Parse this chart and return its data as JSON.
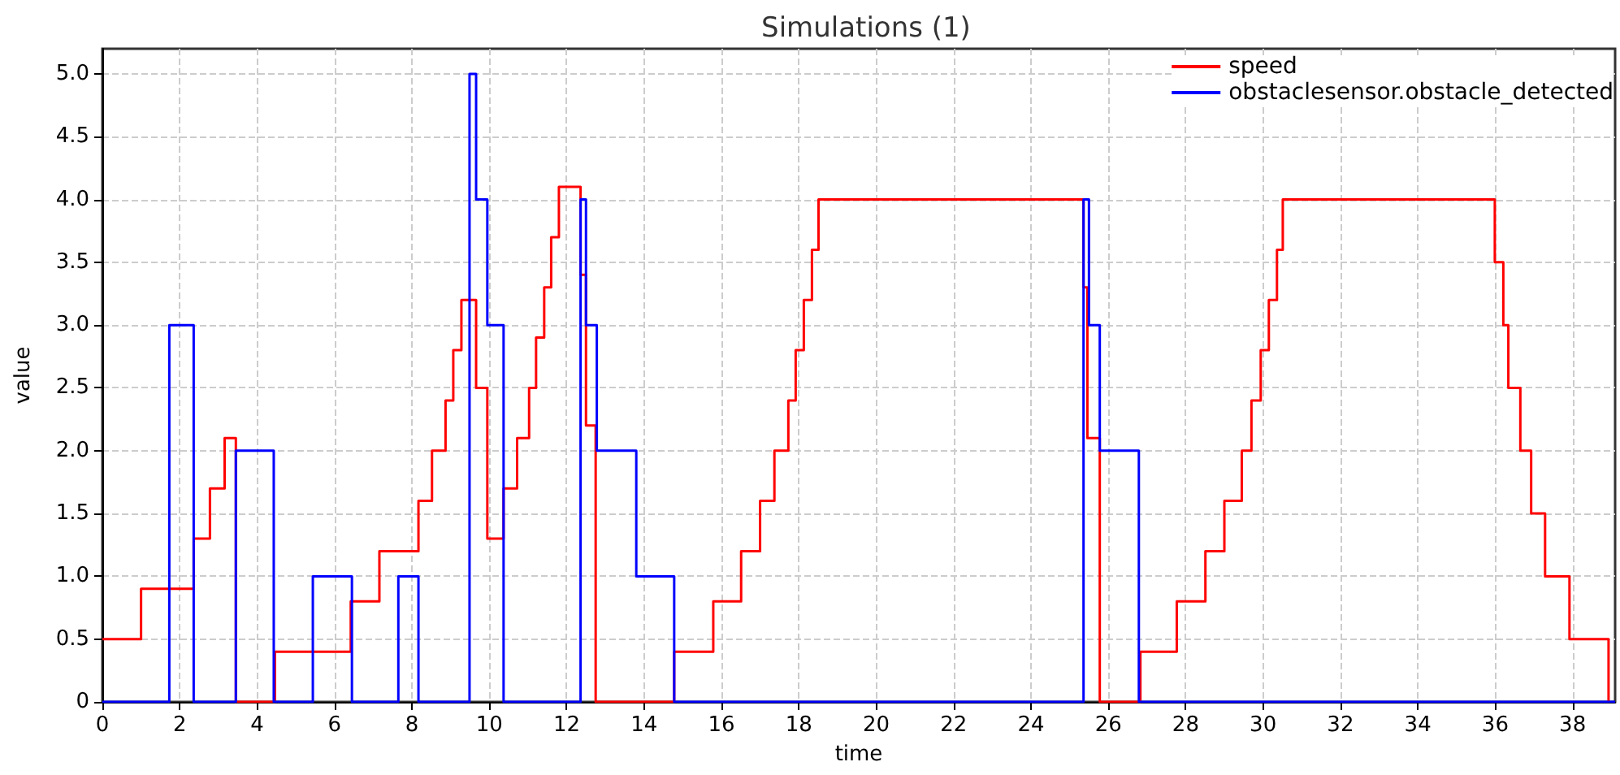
{
  "chart_data": {
    "type": "step",
    "title": "Simulations (1)",
    "xlabel": "time",
    "ylabel": "value",
    "xlim": [
      0,
      39.1
    ],
    "xticks": [
      0,
      2,
      4,
      6,
      8,
      10,
      12,
      14,
      16,
      18,
      20,
      22,
      24,
      26,
      28,
      30,
      32,
      34,
      36,
      38
    ],
    "ylim": [
      0,
      5.2
    ],
    "yticks": [
      0,
      0.5,
      {
        "value": 1,
        "label": "1.0"
      },
      1.5,
      {
        "value": 2,
        "label": "2.0"
      },
      2.5,
      {
        "value": 3,
        "label": "3.0"
      },
      3.5,
      {
        "value": 4,
        "label": "4.0"
      },
      4.5,
      {
        "value": 5,
        "label": "5.0"
      }
    ],
    "grid": true,
    "legend": "top right",
    "line_style": "solid",
    "marker": "none",
    "series": [
      {
        "name": "speed",
        "color": "#ff0000",
        "x": [
          0,
          1.0,
          2.36,
          2.78,
          3.16,
          3.45,
          4.46,
          6.42,
          7.16,
          8.17,
          8.52,
          8.87,
          9.07,
          9.28,
          9.66,
          9.95,
          10.37,
          10.72,
          11.03,
          11.21,
          11.42,
          11.6,
          11.8,
          12.36,
          12.5,
          12.75,
          14.78,
          15.79,
          16.51,
          17.0,
          17.37,
          17.73,
          17.92,
          18.13,
          18.34,
          18.51,
          25.36,
          25.46,
          25.78,
          26.83,
          27.77,
          28.51,
          29.0,
          29.45,
          29.7,
          29.94,
          30.15,
          30.36,
          30.51,
          35.99,
          36.21,
          36.34,
          36.65,
          36.93,
          37.29,
          37.92,
          38.93
        ],
        "values": [
          0.5,
          0.9,
          1.3,
          1.7,
          2.1,
          0,
          0.4,
          0.8,
          1.2,
          1.6,
          2.0,
          2.4,
          2.8,
          3.2,
          2.5,
          1.3,
          1.7,
          2.1,
          2.5,
          2.9,
          3.3,
          3.7,
          4.1,
          3.4,
          2.2,
          0,
          0.4,
          0.8,
          1.2,
          1.6,
          2.0,
          2.4,
          2.8,
          3.2,
          3.6,
          4.0,
          3.3,
          2.1,
          0,
          0.4,
          0.8,
          1.2,
          1.6,
          2.0,
          2.4,
          2.8,
          3.2,
          3.6,
          4.0,
          3.5,
          3.0,
          2.5,
          2.0,
          1.5,
          1.0,
          0.5,
          0
        ]
      },
      {
        "name": "obstaclesensor.obstacle_detected",
        "color": "#0000ff",
        "x": [
          0,
          1.73,
          2.36,
          3.45,
          4.43,
          5.44,
          6.45,
          7.65,
          8.17,
          9.49,
          9.66,
          9.95,
          10.37,
          12.36,
          12.5,
          12.78,
          13.8,
          14.78,
          25.36,
          25.5,
          25.78,
          26.79,
          39.1
        ],
        "values": [
          0,
          3,
          0,
          2,
          0,
          1,
          0,
          1,
          0,
          5,
          4,
          3,
          0,
          4,
          3,
          2,
          1,
          0,
          4,
          3,
          2,
          0,
          0
        ]
      }
    ]
  }
}
